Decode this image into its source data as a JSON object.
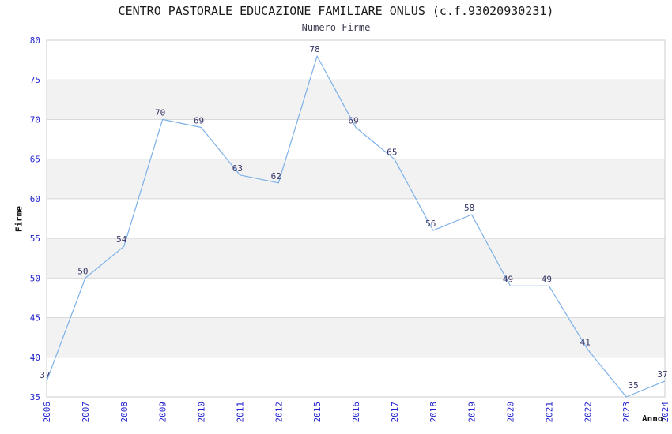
{
  "chart_data": {
    "type": "line",
    "title": "CENTRO PASTORALE EDUCAZIONE FAMILIARE ONLUS (c.f.93020930231)",
    "subtitle": "Numero Firme",
    "xlabel": "Anno",
    "ylabel": "Firme",
    "categories": [
      "2006",
      "2007",
      "2008",
      "2009",
      "2010",
      "2011",
      "2012",
      "2015",
      "2016",
      "2017",
      "2018",
      "2019",
      "2020",
      "2021",
      "2022",
      "2023",
      "2024"
    ],
    "values": [
      37,
      50,
      54,
      70,
      69,
      63,
      62,
      78,
      69,
      65,
      56,
      58,
      49,
      49,
      41,
      35,
      37
    ],
    "ylim": [
      35,
      80
    ],
    "yticks": [
      35,
      40,
      45,
      50,
      55,
      60,
      65,
      70,
      75,
      80
    ],
    "grid": "horizontal-bands",
    "legend": "none",
    "data_labels_visible": true
  },
  "colors": {
    "line": "#7cb0e8",
    "tick_label": "#2222cc",
    "data_label": "#333366",
    "title": "#1a1a1a",
    "subtitle": "#3c3c50",
    "axis_label": "#111111",
    "band": "#f2f2f2",
    "gridline": "#d9d9d9",
    "border": "#cccccc",
    "background": "#ffffff"
  }
}
